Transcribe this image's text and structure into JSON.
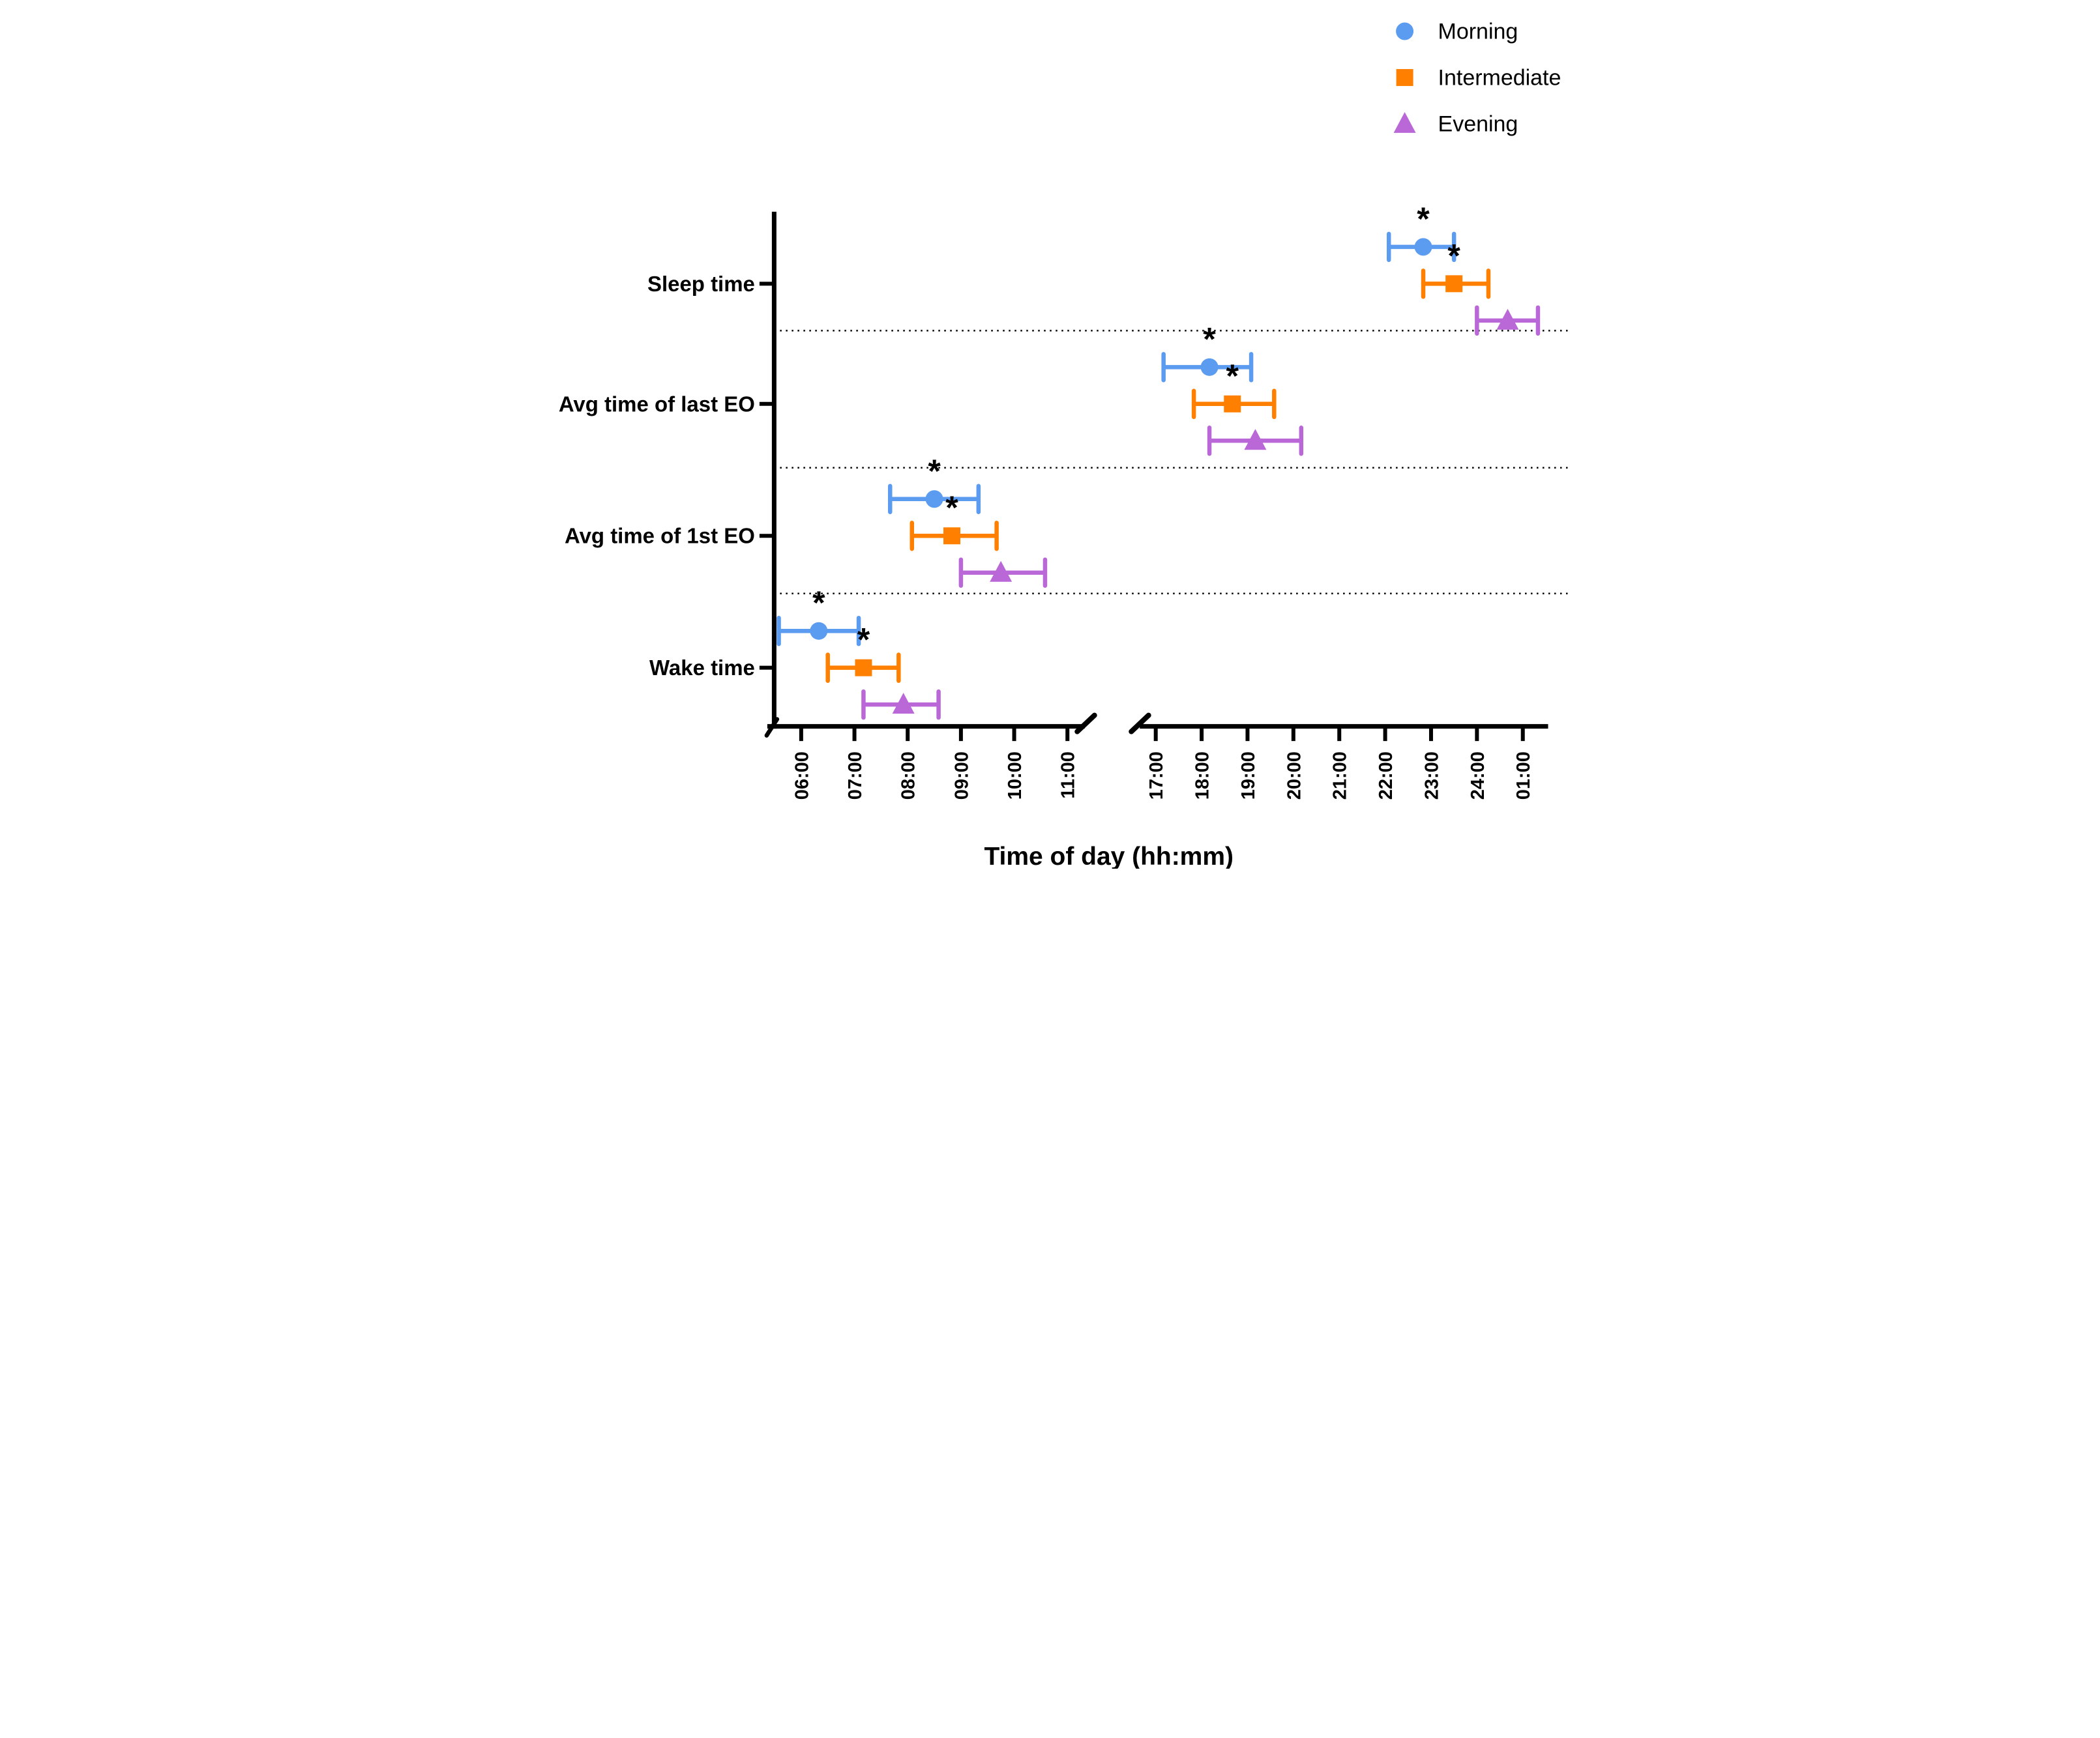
{
  "chart_data": {
    "type": "scatter",
    "subtype": "mean-with-error-bars-on-broken-time-axis",
    "title": "",
    "xlabel": "Time of day (hh:mm)",
    "significance_symbol": "*",
    "categories": [
      "Sleep time",
      "Avg time of last EO",
      "Avg time of 1st EO",
      "Wake time"
    ],
    "x_axis": {
      "broken": true,
      "segments": [
        {
          "name": "morning-segment",
          "tick_labels": [
            "06:00",
            "07:00",
            "08:00",
            "09:00",
            "10:00",
            "11:00"
          ],
          "tick_hours": [
            6,
            7,
            8,
            9,
            10,
            11
          ]
        },
        {
          "name": "evening-segment",
          "tick_labels": [
            "17:00",
            "18:00",
            "19:00",
            "20:00",
            "21:00",
            "22:00",
            "23:00",
            "24:00",
            "01:00"
          ],
          "tick_hours": [
            17,
            18,
            19,
            20,
            21,
            22,
            23,
            24,
            25
          ]
        }
      ]
    },
    "legend": {
      "position": "top-right",
      "entries": [
        {
          "label": "Morning",
          "marker": "circle",
          "color": "#5B9BF0"
        },
        {
          "label": "Intermediate",
          "marker": "square",
          "color": "#FF8000"
        },
        {
          "label": "Evening",
          "marker": "triangle",
          "color": "#BA68D8"
        }
      ]
    },
    "series": [
      {
        "name": "Morning",
        "marker": "circle",
        "color": "#5B9BF0",
        "points": [
          {
            "category": "Sleep time",
            "mean": "22:50",
            "lo": "22:05",
            "hi": "23:30",
            "mean_h": 22.83,
            "lo_h": 22.08,
            "hi_h": 23.5,
            "significant": true
          },
          {
            "category": "Avg time of last EO",
            "mean": "18:10",
            "lo": "17:10",
            "hi": "19:05",
            "mean_h": 18.17,
            "lo_h": 17.17,
            "hi_h": 19.08,
            "significant": true
          },
          {
            "category": "Avg time of 1st EO",
            "mean": "08:30",
            "lo": "07:40",
            "hi": "09:20",
            "mean_h": 8.5,
            "lo_h": 7.67,
            "hi_h": 9.33,
            "significant": true
          },
          {
            "category": "Wake time",
            "mean": "06:20",
            "lo": "05:35",
            "hi": "07:05",
            "mean_h": 6.33,
            "lo_h": 5.58,
            "hi_h": 7.08,
            "significant": true
          }
        ]
      },
      {
        "name": "Intermediate",
        "marker": "square",
        "color": "#FF8000",
        "points": [
          {
            "category": "Sleep time",
            "mean": "23:30",
            "lo": "22:50",
            "hi": "24:15",
            "mean_h": 23.5,
            "lo_h": 22.83,
            "hi_h": 24.25,
            "significant": true
          },
          {
            "category": "Avg time of last EO",
            "mean": "18:40",
            "lo": "17:50",
            "hi": "19:35",
            "mean_h": 18.67,
            "lo_h": 17.83,
            "hi_h": 19.58,
            "significant": true
          },
          {
            "category": "Avg time of 1st EO",
            "mean": "08:50",
            "lo": "08:05",
            "hi": "09:40",
            "mean_h": 8.83,
            "lo_h": 8.08,
            "hi_h": 9.67,
            "significant": true
          },
          {
            "category": "Wake time",
            "mean": "07:10",
            "lo": "06:30",
            "hi": "07:50",
            "mean_h": 7.17,
            "lo_h": 6.5,
            "hi_h": 7.83,
            "significant": true
          }
        ]
      },
      {
        "name": "Evening",
        "marker": "triangle",
        "color": "#BA68D8",
        "points": [
          {
            "category": "Sleep time",
            "mean": "00:40",
            "lo": "24:00",
            "hi": "01:20",
            "mean_h": 24.67,
            "lo_h": 24.0,
            "hi_h": 25.33,
            "significant": false
          },
          {
            "category": "Avg time of last EO",
            "mean": "19:10",
            "lo": "18:10",
            "hi": "20:10",
            "mean_h": 19.17,
            "lo_h": 18.17,
            "hi_h": 20.17,
            "significant": false
          },
          {
            "category": "Avg time of 1st EO",
            "mean": "09:45",
            "lo": "09:00",
            "hi": "10:35",
            "mean_h": 9.75,
            "lo_h": 9.0,
            "hi_h": 10.58,
            "significant": false
          },
          {
            "category": "Wake time",
            "mean": "07:55",
            "lo": "07:10",
            "hi": "08:35",
            "mean_h": 7.92,
            "lo_h": 7.17,
            "hi_h": 8.58,
            "significant": false
          }
        ]
      }
    ]
  }
}
